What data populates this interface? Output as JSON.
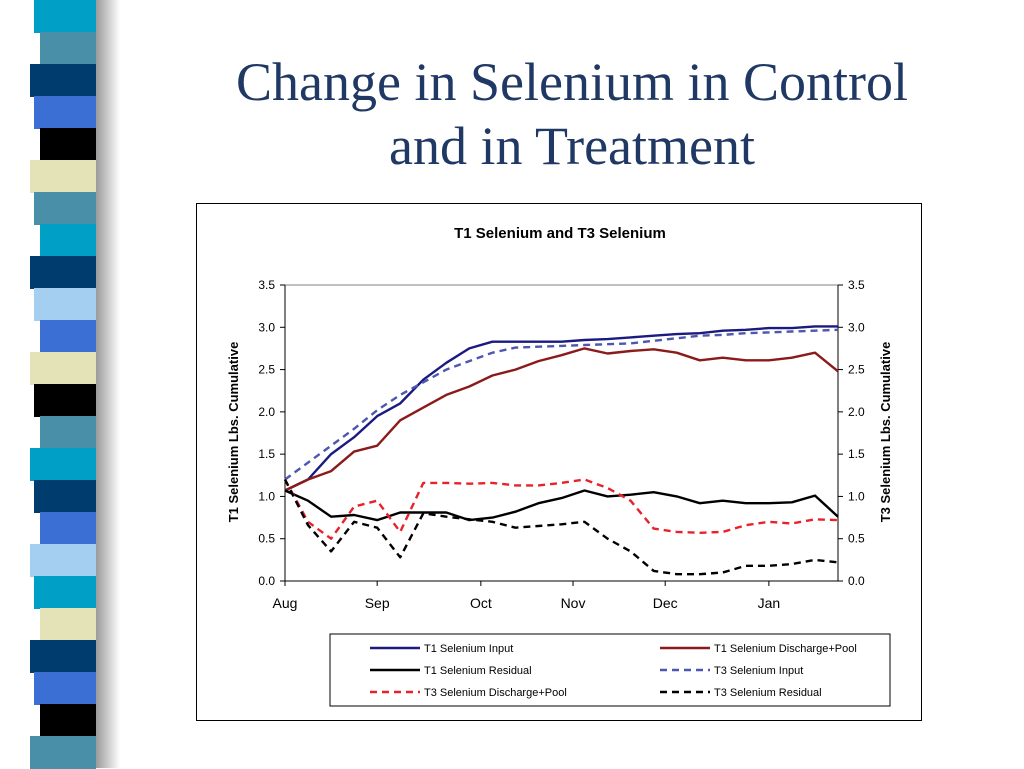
{
  "slide": {
    "title_line1": "Change in Selenium in Control",
    "title_line2": "and in Treatment",
    "title_color": "#1f3864"
  },
  "decor": {
    "strip_colors": [
      "#00a0c6",
      "#4a8fa8",
      "#003c6e",
      "#3b6fd4",
      "#000000",
      "#e4e3b8",
      "#4a8fa8",
      "#00a0c6",
      "#003c6e",
      "#a4cff0",
      "#3b6fd4",
      "#e4e3b8",
      "#000000",
      "#4a8fa8",
      "#00a0c6",
      "#003c6e",
      "#3b6fd4",
      "#a4cff0",
      "#00a0c6",
      "#e4e3b8",
      "#003c6e",
      "#3b6fd4",
      "#000000",
      "#4a8fa8"
    ]
  },
  "chart_data": {
    "type": "line",
    "title": "T1  Selenium  and   T3  Selenium",
    "ylabel": "T1  Selenium Lbs. Cumulative",
    "y2label": "T3  Selenium Lbs. Cumulative",
    "xlabel": "",
    "ylim": [
      0,
      3.5
    ],
    "y2lim": [
      0,
      3.5
    ],
    "yticks": [
      "0.0",
      "0.5",
      "1.0",
      "1.5",
      "2.0",
      "2.5",
      "3.0",
      "3.5"
    ],
    "x_range": [
      0,
      24
    ],
    "xtick_labels": [
      {
        "label": "Aug",
        "x": 0
      },
      {
        "label": "Sep",
        "x": 4
      },
      {
        "label": "Oct",
        "x": 8.5
      },
      {
        "label": "Nov",
        "x": 12.5
      },
      {
        "label": "Dec",
        "x": 16.5
      },
      {
        "label": "Jan",
        "x": 21
      }
    ],
    "grid": false,
    "legend_position": "bottom",
    "x": [
      0,
      1,
      2,
      3,
      4,
      5,
      6,
      7,
      8,
      9,
      10,
      11,
      12,
      13,
      14,
      15,
      16,
      17,
      18,
      19,
      20,
      21,
      22,
      23,
      24
    ],
    "series": [
      {
        "name": "T1  Selenium Input",
        "color": "#1a1a80",
        "dash": "solid",
        "values": [
          1.07,
          1.2,
          1.5,
          1.7,
          1.95,
          2.1,
          2.38,
          2.58,
          2.75,
          2.83,
          2.83,
          2.83,
          2.83,
          2.85,
          2.86,
          2.88,
          2.9,
          2.92,
          2.93,
          2.96,
          2.97,
          2.99,
          2.99,
          3.01,
          3.01
        ]
      },
      {
        "name": "T1  Selenium Discharge+Pool",
        "color": "#8b1a1a",
        "dash": "solid",
        "values": [
          1.07,
          1.2,
          1.3,
          1.53,
          1.6,
          1.9,
          2.05,
          2.2,
          2.3,
          2.43,
          2.5,
          2.6,
          2.67,
          2.75,
          2.69,
          2.72,
          2.74,
          2.7,
          2.61,
          2.64,
          2.61,
          2.61,
          2.64,
          2.7,
          2.48
        ]
      },
      {
        "name": "T1  Selenium Residual",
        "color": "#000000",
        "dash": "solid",
        "values": [
          1.07,
          0.95,
          0.76,
          0.78,
          0.72,
          0.81,
          0.81,
          0.81,
          0.72,
          0.75,
          0.82,
          0.92,
          0.98,
          1.07,
          1.0,
          1.02,
          1.05,
          1.0,
          0.92,
          0.95,
          0.92,
          0.92,
          0.93,
          1.01,
          0.76
        ]
      },
      {
        "name": "T3  Selenium Input",
        "color": "#4d57b0",
        "dash": "dash",
        "values": [
          1.2,
          1.4,
          1.6,
          1.8,
          2.02,
          2.2,
          2.35,
          2.5,
          2.6,
          2.7,
          2.76,
          2.77,
          2.78,
          2.79,
          2.8,
          2.81,
          2.84,
          2.87,
          2.9,
          2.91,
          2.93,
          2.94,
          2.95,
          2.96,
          2.97
        ]
      },
      {
        "name": "T3  Selenium Discharge+Pool",
        "color": "#e8222a",
        "dash": "dash",
        "values": [
          1.2,
          0.7,
          0.5,
          0.88,
          0.95,
          0.58,
          1.16,
          1.16,
          1.15,
          1.16,
          1.13,
          1.13,
          1.16,
          1.2,
          1.1,
          0.95,
          0.62,
          0.58,
          0.57,
          0.58,
          0.66,
          0.7,
          0.68,
          0.73,
          0.72
        ]
      },
      {
        "name": "T3  Selenium Residual",
        "color": "#000000",
        "dash": "dash",
        "values": [
          1.2,
          0.66,
          0.35,
          0.7,
          0.63,
          0.28,
          0.8,
          0.76,
          0.73,
          0.7,
          0.63,
          0.65,
          0.67,
          0.7,
          0.5,
          0.35,
          0.12,
          0.08,
          0.08,
          0.1,
          0.18,
          0.18,
          0.2,
          0.25,
          0.22
        ]
      }
    ]
  }
}
